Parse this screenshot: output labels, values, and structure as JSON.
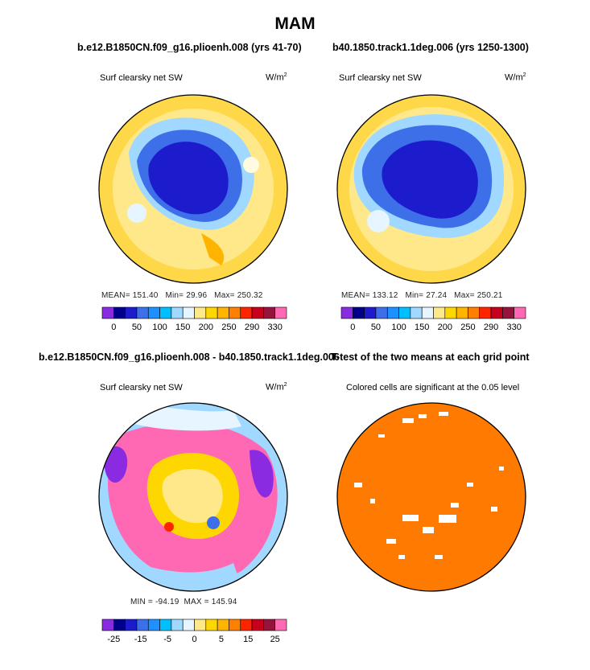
{
  "figure_title": "MAM",
  "chart_data": [
    {
      "type": "heatmap",
      "projection": "north-polar-stereographic",
      "title": "b.e12.B1850CN.f09_g16.plioenh.008 (yrs 41-70)",
      "left_label": "Surf clearsky net SW",
      "units_base": "W/m",
      "units_exp": "2",
      "stats": {
        "mean_label": "MEAN=",
        "mean": "151.40",
        "min_label": "Min=",
        "min": "29.96",
        "max_label": "Max=",
        "max": "250.32"
      },
      "colorbar": {
        "colors": [
          "#8a2be2",
          "#00008b",
          "#1c1ccd",
          "#3c6fe8",
          "#1e90ff",
          "#00bfff",
          "#a0d8ff",
          "#e6f5ff",
          "#ffe88a",
          "#ffd700",
          "#ffb400",
          "#ff7f00",
          "#ff2400",
          "#c8001e",
          "#96143c",
          "#ff69b4"
        ],
        "tick_labels": [
          "0",
          "50",
          "100",
          "150",
          "200",
          "250",
          "290",
          "330"
        ],
        "levels": [
          0,
          50,
          100,
          150,
          200,
          250,
          290,
          330
        ]
      }
    },
    {
      "type": "heatmap",
      "projection": "north-polar-stereographic",
      "title": "b40.1850.track1.1deg.006 (yrs 1250-1300)",
      "left_label": "Surf clearsky net SW",
      "units_base": "W/m",
      "units_exp": "2",
      "stats": {
        "mean_label": "MEAN=",
        "mean": "133.12",
        "min_label": "Min=",
        "min": "27.24",
        "max_label": "Max=",
        "max": "250.21"
      },
      "colorbar": {
        "colors": [
          "#8a2be2",
          "#00008b",
          "#1c1ccd",
          "#3c6fe8",
          "#1e90ff",
          "#00bfff",
          "#a0d8ff",
          "#e6f5ff",
          "#ffe88a",
          "#ffd700",
          "#ffb400",
          "#ff7f00",
          "#ff2400",
          "#c8001e",
          "#96143c",
          "#ff69b4"
        ],
        "tick_labels": [
          "0",
          "50",
          "100",
          "150",
          "200",
          "250",
          "290",
          "330"
        ],
        "levels": [
          0,
          50,
          100,
          150,
          200,
          250,
          290,
          330
        ]
      }
    },
    {
      "type": "heatmap",
      "projection": "north-polar-stereographic",
      "title": "b.e12.B1850CN.f09_g16.plioenh.008 - b40.1850.track1.1deg.006",
      "left_label": "Surf clearsky net SW",
      "units_base": "W/m",
      "units_exp": "2",
      "stats": {
        "min_label": "MIN =",
        "min": "-94.19",
        "max_label": "MAX =",
        "max": "145.94"
      },
      "colorbar": {
        "colors": [
          "#8a2be2",
          "#00008b",
          "#1c1ccd",
          "#3c6fe8",
          "#1e90ff",
          "#00bfff",
          "#a0d8ff",
          "#e6f5ff",
          "#ffe88a",
          "#ffd700",
          "#ffb400",
          "#ff7f00",
          "#ff2400",
          "#c8001e",
          "#96143c",
          "#ff69b4"
        ],
        "tick_labels": [
          "-25",
          "-15",
          "-5",
          "0",
          "5",
          "15",
          "25"
        ],
        "levels": [
          -25,
          -15,
          -5,
          0,
          5,
          15,
          25
        ]
      }
    },
    {
      "type": "heatmap",
      "projection": "north-polar-stereographic",
      "title": "T-test of the two means at each grid point",
      "left_label": "Colored cells are significant at the 0.05 level",
      "significance_color": "#ff7a00"
    }
  ]
}
